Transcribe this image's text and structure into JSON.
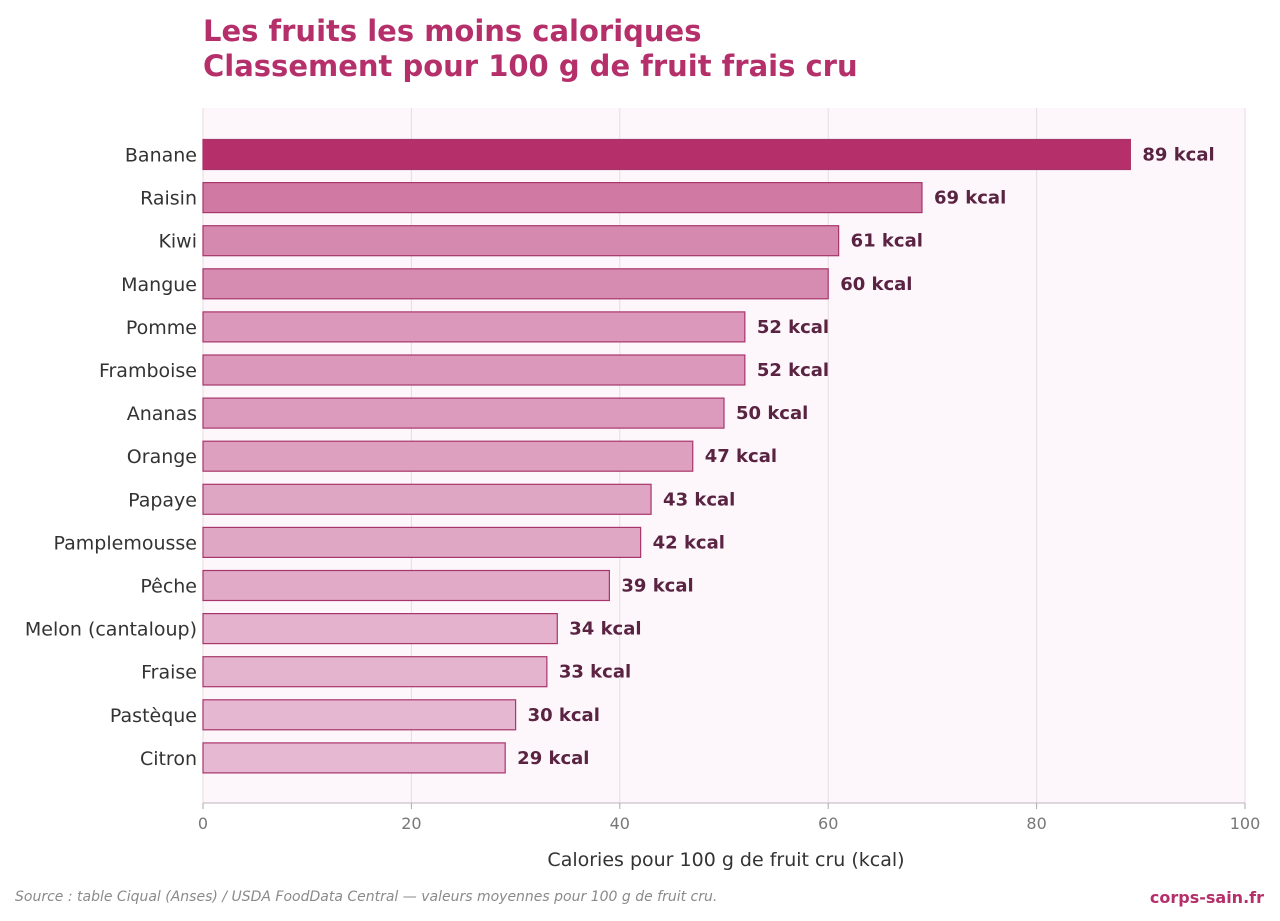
{
  "header": {
    "title_line1": "Les fruits les moins caloriques",
    "title_line2": "Classement pour 100 g de fruit frais cru"
  },
  "footer": {
    "source": "Source : table Ciqual (Anses) / USDA FoodData Central — valeurs moyennes pour 100 g de fruit cru.",
    "brand": "corps-sain.fr"
  },
  "colors": {
    "title": "#b5306a",
    "bar_dark": "#b5306a",
    "bar_light": "#e6b8d2",
    "bar_stroke": "#a8356a",
    "plot_bg": "#fdf7fb",
    "value_text": "#5a2342"
  },
  "chart_data": {
    "type": "bar",
    "orientation": "horizontal",
    "categories": [
      "Banane",
      "Raisin",
      "Kiwi",
      "Mangue",
      "Pomme",
      "Framboise",
      "Ananas",
      "Orange",
      "Papaye",
      "Pamplemousse",
      "Pêche",
      "Melon (cantaloup)",
      "Fraise",
      "Pastèque",
      "Citron"
    ],
    "values": [
      89,
      69,
      61,
      60,
      52,
      52,
      50,
      47,
      43,
      42,
      39,
      34,
      33,
      30,
      29
    ],
    "value_labels": [
      "89 kcal",
      "69 kcal",
      "61 kcal",
      "60 kcal",
      "52 kcal",
      "52 kcal",
      "50 kcal",
      "47 kcal",
      "43 kcal",
      "42 kcal",
      "39 kcal",
      "34 kcal",
      "33 kcal",
      "30 kcal",
      "29 kcal"
    ],
    "xlabel": "Calories pour 100 g de fruit cru (kcal)",
    "ylabel": "",
    "xlim": [
      0,
      100
    ],
    "xticks": [
      0,
      20,
      40,
      60,
      80,
      100
    ],
    "xtick_labels": [
      "0",
      "20",
      "40",
      "60",
      "80",
      "100"
    ],
    "grid": "vertical",
    "legend": "none"
  }
}
